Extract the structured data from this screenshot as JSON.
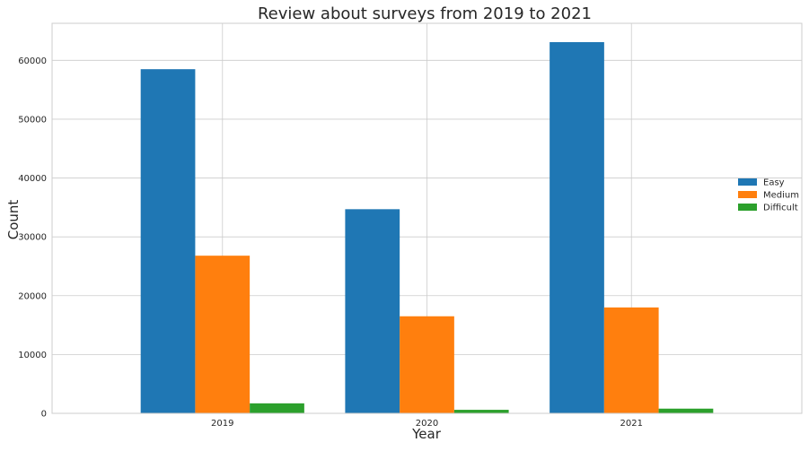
{
  "chart_data": {
    "type": "bar",
    "title": "Review about surveys from 2019 to 2021",
    "xlabel": "Year",
    "ylabel": "Count",
    "categories": [
      "2019",
      "2020",
      "2021"
    ],
    "series": [
      {
        "name": "Easy",
        "color": "#1f77b4",
        "values": [
          58500,
          34700,
          63100
        ]
      },
      {
        "name": "Medium",
        "color": "#ff7f0e",
        "values": [
          26800,
          16500,
          18000
        ]
      },
      {
        "name": "Difficult",
        "color": "#2ca02c",
        "values": [
          1700,
          600,
          800
        ]
      }
    ],
    "ylim": [
      0,
      66300
    ],
    "yticks": [
      0,
      10000,
      20000,
      30000,
      40000,
      50000,
      60000
    ],
    "ytick_labels": [
      "0",
      "10000",
      "20000",
      "30000",
      "40000",
      "50000",
      "60000"
    ],
    "grid": true,
    "legend_position": "top-right"
  }
}
